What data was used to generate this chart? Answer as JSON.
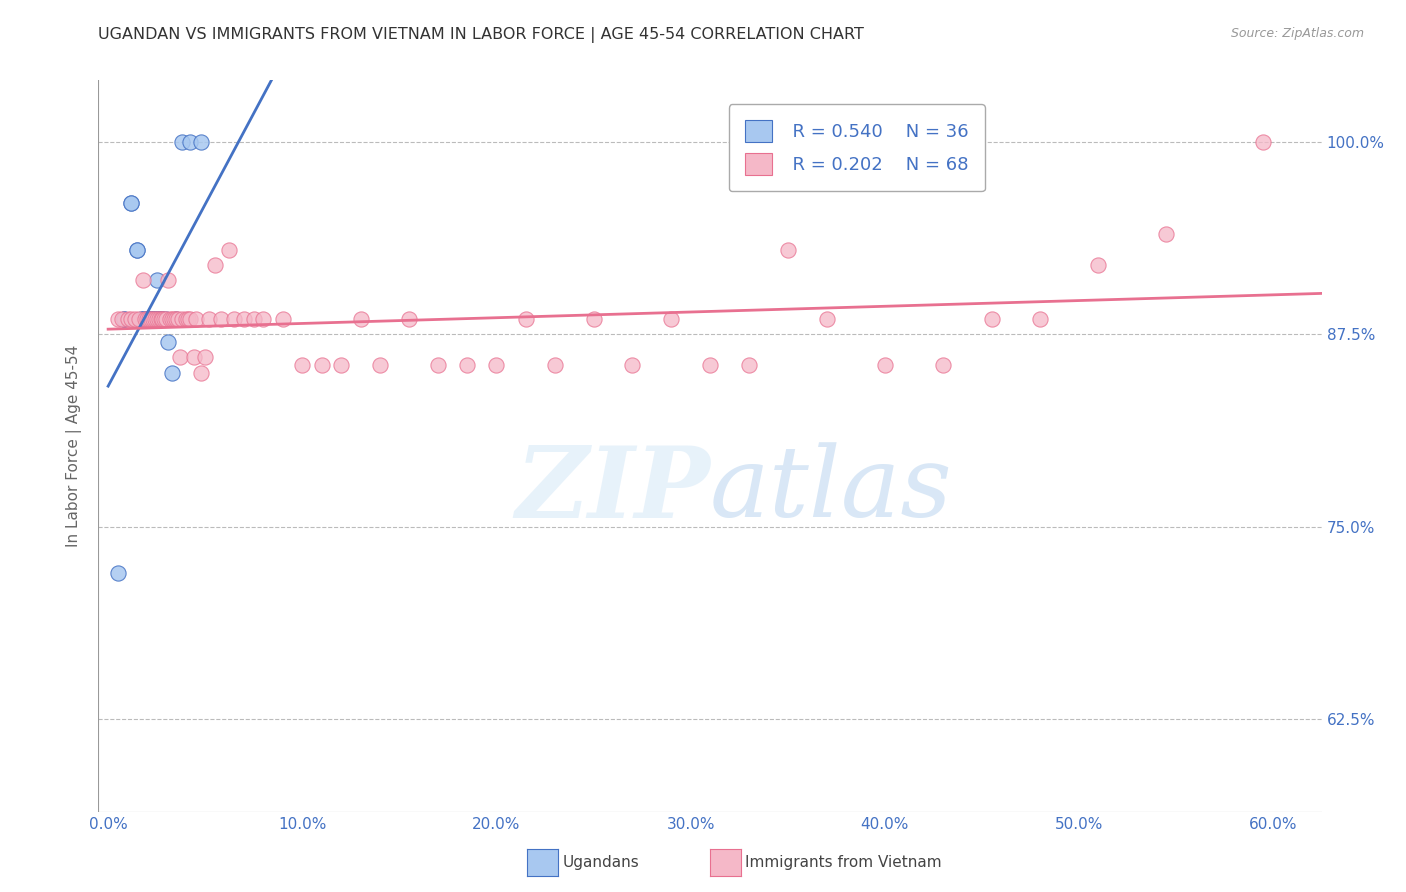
{
  "title": "UGANDAN VS IMMIGRANTS FROM VIETNAM IN LABOR FORCE | AGE 45-54 CORRELATION CHART",
  "source": "Source: ZipAtlas.com",
  "ylabel": "In Labor Force | Age 45-54",
  "legend_blue_r": "R = 0.540",
  "legend_blue_n": "N = 36",
  "legend_pink_r": "R = 0.202",
  "legend_pink_n": "N = 68",
  "legend_label_blue": "Ugandans",
  "legend_label_pink": "Immigrants from Vietnam",
  "x_ticks": [
    0.0,
    0.1,
    0.2,
    0.3,
    0.4,
    0.5,
    0.6
  ],
  "x_tick_labels": [
    "0.0%",
    "10.0%",
    "20.0%",
    "30.0%",
    "40.0%",
    "50.0%",
    "60.0%"
  ],
  "y_ticks_right": [
    0.625,
    0.75,
    0.875,
    1.0
  ],
  "y_tick_labels_right": [
    "62.5%",
    "75.0%",
    "87.5%",
    "100.0%"
  ],
  "xlim": [
    -0.005,
    0.625
  ],
  "ylim": [
    0.565,
    1.04
  ],
  "blue_color": "#A8C8F0",
  "pink_color": "#F5B8C8",
  "blue_line_color": "#4472C4",
  "pink_line_color": "#E87090",
  "axis_label_color": "#4472C4",
  "grid_color": "#BBBBBB",
  "ugandans_x": [
    0.005,
    0.008,
    0.008,
    0.012,
    0.012,
    0.015,
    0.015,
    0.017,
    0.018,
    0.018,
    0.02,
    0.02,
    0.02,
    0.021,
    0.021,
    0.022,
    0.022,
    0.022,
    0.023,
    0.023,
    0.024,
    0.024,
    0.025,
    0.025,
    0.026,
    0.026,
    0.027,
    0.028,
    0.028,
    0.03,
    0.031,
    0.033,
    0.035,
    0.038,
    0.042,
    0.048
  ],
  "ugandans_y": [
    0.72,
    0.885,
    0.885,
    0.96,
    0.96,
    0.93,
    0.93,
    0.885,
    0.885,
    0.885,
    0.885,
    0.885,
    0.885,
    0.885,
    0.885,
    0.885,
    0.885,
    0.885,
    0.885,
    0.885,
    0.885,
    0.885,
    0.885,
    0.91,
    0.885,
    0.885,
    0.885,
    0.885,
    0.885,
    0.885,
    0.87,
    0.85,
    0.885,
    1.0,
    1.0,
    1.0
  ],
  "vietnam_x": [
    0.005,
    0.007,
    0.01,
    0.012,
    0.014,
    0.016,
    0.018,
    0.019,
    0.02,
    0.021,
    0.022,
    0.023,
    0.024,
    0.025,
    0.026,
    0.027,
    0.028,
    0.029,
    0.03,
    0.031,
    0.032,
    0.033,
    0.034,
    0.035,
    0.036,
    0.037,
    0.038,
    0.04,
    0.041,
    0.042,
    0.044,
    0.045,
    0.048,
    0.05,
    0.052,
    0.055,
    0.058,
    0.062,
    0.065,
    0.07,
    0.075,
    0.08,
    0.09,
    0.1,
    0.11,
    0.12,
    0.13,
    0.14,
    0.155,
    0.17,
    0.185,
    0.2,
    0.215,
    0.23,
    0.25,
    0.27,
    0.29,
    0.31,
    0.33,
    0.35,
    0.37,
    0.4,
    0.43,
    0.455,
    0.48,
    0.51,
    0.545,
    0.595
  ],
  "vietnam_y": [
    0.885,
    0.885,
    0.885,
    0.885,
    0.885,
    0.885,
    0.91,
    0.885,
    0.885,
    0.885,
    0.885,
    0.885,
    0.885,
    0.885,
    0.885,
    0.885,
    0.885,
    0.885,
    0.885,
    0.91,
    0.885,
    0.885,
    0.885,
    0.885,
    0.885,
    0.86,
    0.885,
    0.885,
    0.885,
    0.885,
    0.86,
    0.885,
    0.85,
    0.86,
    0.885,
    0.92,
    0.885,
    0.93,
    0.885,
    0.885,
    0.885,
    0.885,
    0.885,
    0.855,
    0.855,
    0.855,
    0.885,
    0.855,
    0.885,
    0.855,
    0.855,
    0.855,
    0.885,
    0.855,
    0.885,
    0.855,
    0.885,
    0.855,
    0.855,
    0.93,
    0.885,
    0.855,
    0.855,
    0.885,
    0.885,
    0.92,
    0.94,
    1.0
  ]
}
